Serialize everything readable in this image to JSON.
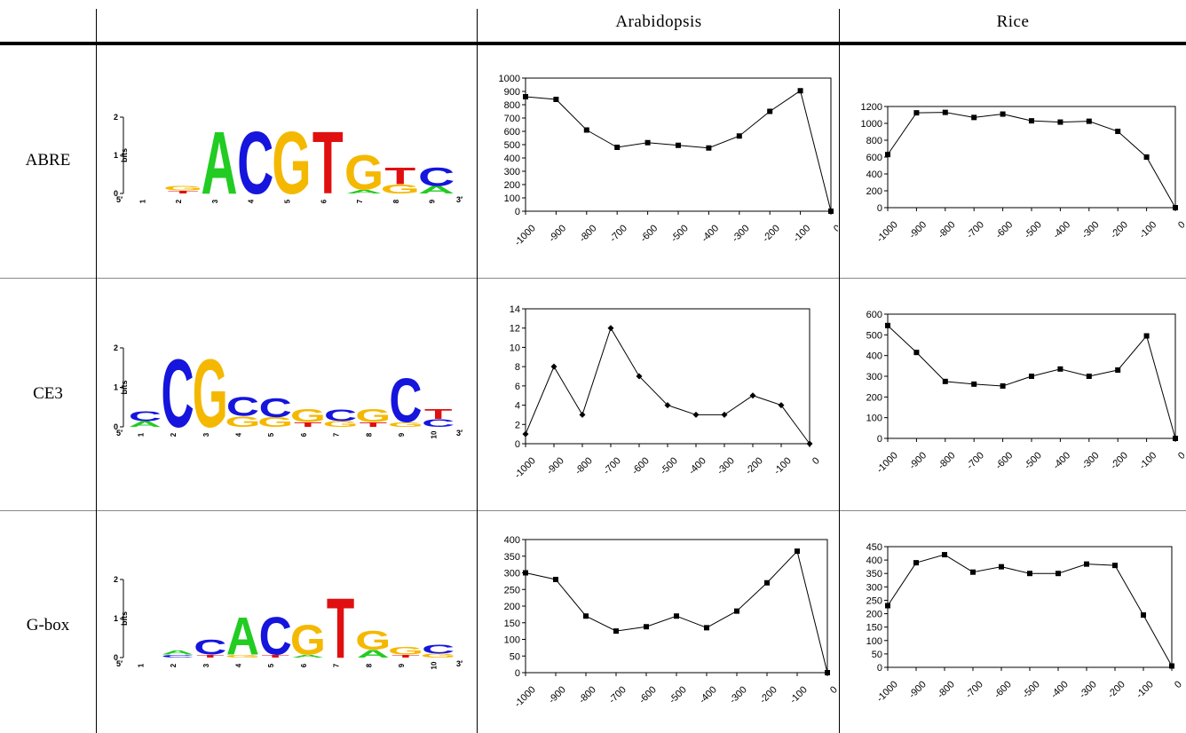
{
  "header": {
    "col_arabidopsis": "Arabidopsis",
    "col_rice": "Rice"
  },
  "rows": [
    {
      "label": "ABRE",
      "logo": {
        "ylabel": "bits",
        "yticks": [
          "0",
          "1",
          "2"
        ],
        "five_prime": "5′",
        "three_prime": "3′",
        "positions": [
          {
            "number": "1",
            "letters": []
          },
          {
            "number": "2",
            "letters": [
              {
                "char": "T",
                "bits": 0.08
              },
              {
                "char": "G",
                "bits": 0.12
              }
            ]
          },
          {
            "number": "3",
            "letters": [
              {
                "char": "A",
                "bits": 1.7
              }
            ]
          },
          {
            "number": "4",
            "letters": [
              {
                "char": "C",
                "bits": 1.7
              }
            ]
          },
          {
            "number": "5",
            "letters": [
              {
                "char": "G",
                "bits": 1.7
              }
            ]
          },
          {
            "number": "6",
            "letters": [
              {
                "char": "T",
                "bits": 1.7
              }
            ]
          },
          {
            "number": "7",
            "letters": [
              {
                "char": "A",
                "bits": 0.1
              },
              {
                "char": "G",
                "bits": 0.95
              }
            ]
          },
          {
            "number": "8",
            "letters": [
              {
                "char": "G",
                "bits": 0.25
              },
              {
                "char": "T",
                "bits": 0.45
              }
            ]
          },
          {
            "number": "9",
            "letters": [
              {
                "char": "A",
                "bits": 0.2
              },
              {
                "char": "C",
                "bits": 0.5
              }
            ]
          }
        ]
      }
    },
    {
      "label": "CE3",
      "logo": {
        "ylabel": "bits",
        "yticks": [
          "0",
          "1",
          "2"
        ],
        "five_prime": "5′",
        "three_prime": "3′",
        "positions": [
          {
            "number": "1",
            "letters": [
              {
                "char": "A",
                "bits": 0.15
              },
              {
                "char": "C",
                "bits": 0.25
              }
            ]
          },
          {
            "number": "2",
            "letters": [
              {
                "char": "C",
                "bits": 1.8
              }
            ]
          },
          {
            "number": "3",
            "letters": [
              {
                "char": "G",
                "bits": 1.8
              }
            ]
          },
          {
            "number": "4",
            "letters": [
              {
                "char": "G",
                "bits": 0.28
              },
              {
                "char": "C",
                "bits": 0.5
              }
            ]
          },
          {
            "number": "5",
            "letters": [
              {
                "char": "G",
                "bits": 0.25
              },
              {
                "char": "C",
                "bits": 0.5
              }
            ]
          },
          {
            "number": "6",
            "letters": [
              {
                "char": "T",
                "bits": 0.12
              },
              {
                "char": "G",
                "bits": 0.35
              }
            ]
          },
          {
            "number": "7",
            "letters": [
              {
                "char": "G",
                "bits": 0.15
              },
              {
                "char": "C",
                "bits": 0.3
              }
            ]
          },
          {
            "number": "8",
            "letters": [
              {
                "char": "T",
                "bits": 0.12
              },
              {
                "char": "G",
                "bits": 0.35
              }
            ]
          },
          {
            "number": "9",
            "letters": [
              {
                "char": "G",
                "bits": 0.12
              },
              {
                "char": "C",
                "bits": 1.15
              }
            ]
          },
          {
            "number": "10",
            "letters": [
              {
                "char": "C",
                "bits": 0.2
              },
              {
                "char": "T",
                "bits": 0.25
              }
            ]
          }
        ]
      }
    },
    {
      "label": "G-box",
      "logo": {
        "ylabel": "bits",
        "yticks": [
          "0",
          "1",
          "2"
        ],
        "five_prime": "5′",
        "three_prime": "3′",
        "positions": [
          {
            "number": "1",
            "letters": []
          },
          {
            "number": "2",
            "letters": [
              {
                "char": "C",
                "bits": 0.08
              },
              {
                "char": "A",
                "bits": 0.1
              }
            ]
          },
          {
            "number": "3",
            "letters": [
              {
                "char": "T",
                "bits": 0.08
              },
              {
                "char": "C",
                "bits": 0.4
              }
            ]
          },
          {
            "number": "4",
            "letters": [
              {
                "char": "G",
                "bits": 0.08
              },
              {
                "char": "A",
                "bits": 1.0
              }
            ]
          },
          {
            "number": "5",
            "letters": [
              {
                "char": "T",
                "bits": 0.08
              },
              {
                "char": "C",
                "bits": 1.0
              }
            ]
          },
          {
            "number": "6",
            "letters": [
              {
                "char": "A",
                "bits": 0.08
              },
              {
                "char": "G",
                "bits": 0.8
              }
            ]
          },
          {
            "number": "7",
            "letters": [
              {
                "char": "T",
                "bits": 1.6
              }
            ]
          },
          {
            "number": "8",
            "letters": [
              {
                "char": "A",
                "bits": 0.2
              },
              {
                "char": "G",
                "bits": 0.5
              }
            ]
          },
          {
            "number": "9",
            "letters": [
              {
                "char": "T",
                "bits": 0.08
              },
              {
                "char": "G",
                "bits": 0.2
              }
            ]
          },
          {
            "number": "10",
            "letters": [
              {
                "char": "G",
                "bits": 0.1
              },
              {
                "char": "C",
                "bits": 0.25
              }
            ]
          }
        ]
      }
    }
  ],
  "colors": {
    "A": "#22cc22",
    "C": "#1515dd",
    "G": "#f5b800",
    "T": "#e01010",
    "line": "#000000"
  },
  "chart_data": [
    {
      "id": "abre-arabidopsis",
      "type": "line",
      "marker": "square",
      "x_tick_labels": [
        "-1000",
        "-900",
        "-800",
        "-700",
        "-600",
        "-500",
        "-400",
        "-300",
        "-200",
        "-100",
        "0"
      ],
      "x": [
        -1000,
        -900,
        -800,
        -700,
        -600,
        -500,
        -400,
        -300,
        -200,
        -100,
        0
      ],
      "y": [
        860,
        840,
        610,
        480,
        515,
        495,
        475,
        565,
        750,
        905,
        0
      ],
      "ylim": [
        0,
        1000
      ],
      "ystep": 100,
      "grid": false,
      "title": "",
      "xlabel": "",
      "ylabel": ""
    },
    {
      "id": "abre-rice",
      "type": "line",
      "marker": "square",
      "x_tick_labels": [
        "-1000",
        "-900",
        "-800",
        "-700",
        "-600",
        "-500",
        "-400",
        "-300",
        "-200",
        "-100",
        "0"
      ],
      "x": [
        -1000,
        -900,
        -800,
        -700,
        -600,
        -500,
        -400,
        -300,
        -200,
        -100,
        0
      ],
      "y": [
        630,
        1125,
        1130,
        1070,
        1110,
        1030,
        1015,
        1025,
        905,
        600,
        0
      ],
      "ylim": [
        0,
        1200
      ],
      "ystep": 200,
      "grid": false,
      "title": "",
      "xlabel": "",
      "ylabel": ""
    },
    {
      "id": "ce3-arabidopsis",
      "type": "line",
      "marker": "diamond",
      "x_tick_labels": [
        "-1000",
        "-900",
        "-800",
        "-700",
        "-600",
        "-500",
        "-400",
        "-300",
        "-200",
        "-100",
        "0"
      ],
      "x": [
        -1000,
        -900,
        -800,
        -700,
        -600,
        -500,
        -400,
        -300,
        -200,
        -100,
        0
      ],
      "y": [
        1,
        8,
        3,
        12,
        7,
        4,
        3,
        3,
        5,
        4,
        0
      ],
      "ylim": [
        0,
        14
      ],
      "ystep": 2,
      "grid": false,
      "title": "",
      "xlabel": "",
      "ylabel": ""
    },
    {
      "id": "ce3-rice",
      "type": "line",
      "marker": "square",
      "x_tick_labels": [
        "-1000",
        "-900",
        "-800",
        "-700",
        "-600",
        "-500",
        "-400",
        "-300",
        "-200",
        "-100",
        "0"
      ],
      "x": [
        -1000,
        -900,
        -800,
        -700,
        -600,
        -500,
        -400,
        -300,
        -200,
        -100,
        0
      ],
      "y": [
        545,
        415,
        275,
        262,
        253,
        300,
        335,
        300,
        330,
        495,
        0
      ],
      "ylim": [
        0,
        600
      ],
      "ystep": 100,
      "grid": false,
      "title": "",
      "xlabel": "",
      "ylabel": ""
    },
    {
      "id": "gbox-arabidopsis",
      "type": "line",
      "marker": "square",
      "x_tick_labels": [
        "-1000",
        "-900",
        "-800",
        "-700",
        "-600",
        "-500",
        "-400",
        "-300",
        "-200",
        "-100",
        "0"
      ],
      "x": [
        -1000,
        -900,
        -800,
        -700,
        -600,
        -500,
        -400,
        -300,
        -200,
        -100,
        0
      ],
      "y": [
        300,
        280,
        170,
        125,
        138,
        170,
        135,
        185,
        270,
        365,
        0
      ],
      "ylim": [
        0,
        400
      ],
      "ystep": 50,
      "grid": false,
      "title": "",
      "xlabel": "",
      "ylabel": ""
    },
    {
      "id": "gbox-rice",
      "type": "line",
      "marker": "square",
      "x_tick_labels": [
        "-1000",
        "-900",
        "-800",
        "-700",
        "-600",
        "-500",
        "-400",
        "-300",
        "-200",
        "-100",
        "0"
      ],
      "x": [
        -1000,
        -900,
        -800,
        -700,
        -600,
        -500,
        -400,
        -300,
        -200,
        -100,
        0
      ],
      "y": [
        230,
        390,
        420,
        355,
        375,
        350,
        350,
        385,
        380,
        195,
        5
      ],
      "ylim": [
        0,
        450
      ],
      "ystep": 50,
      "grid": false,
      "title": "",
      "xlabel": "",
      "ylabel": ""
    }
  ]
}
